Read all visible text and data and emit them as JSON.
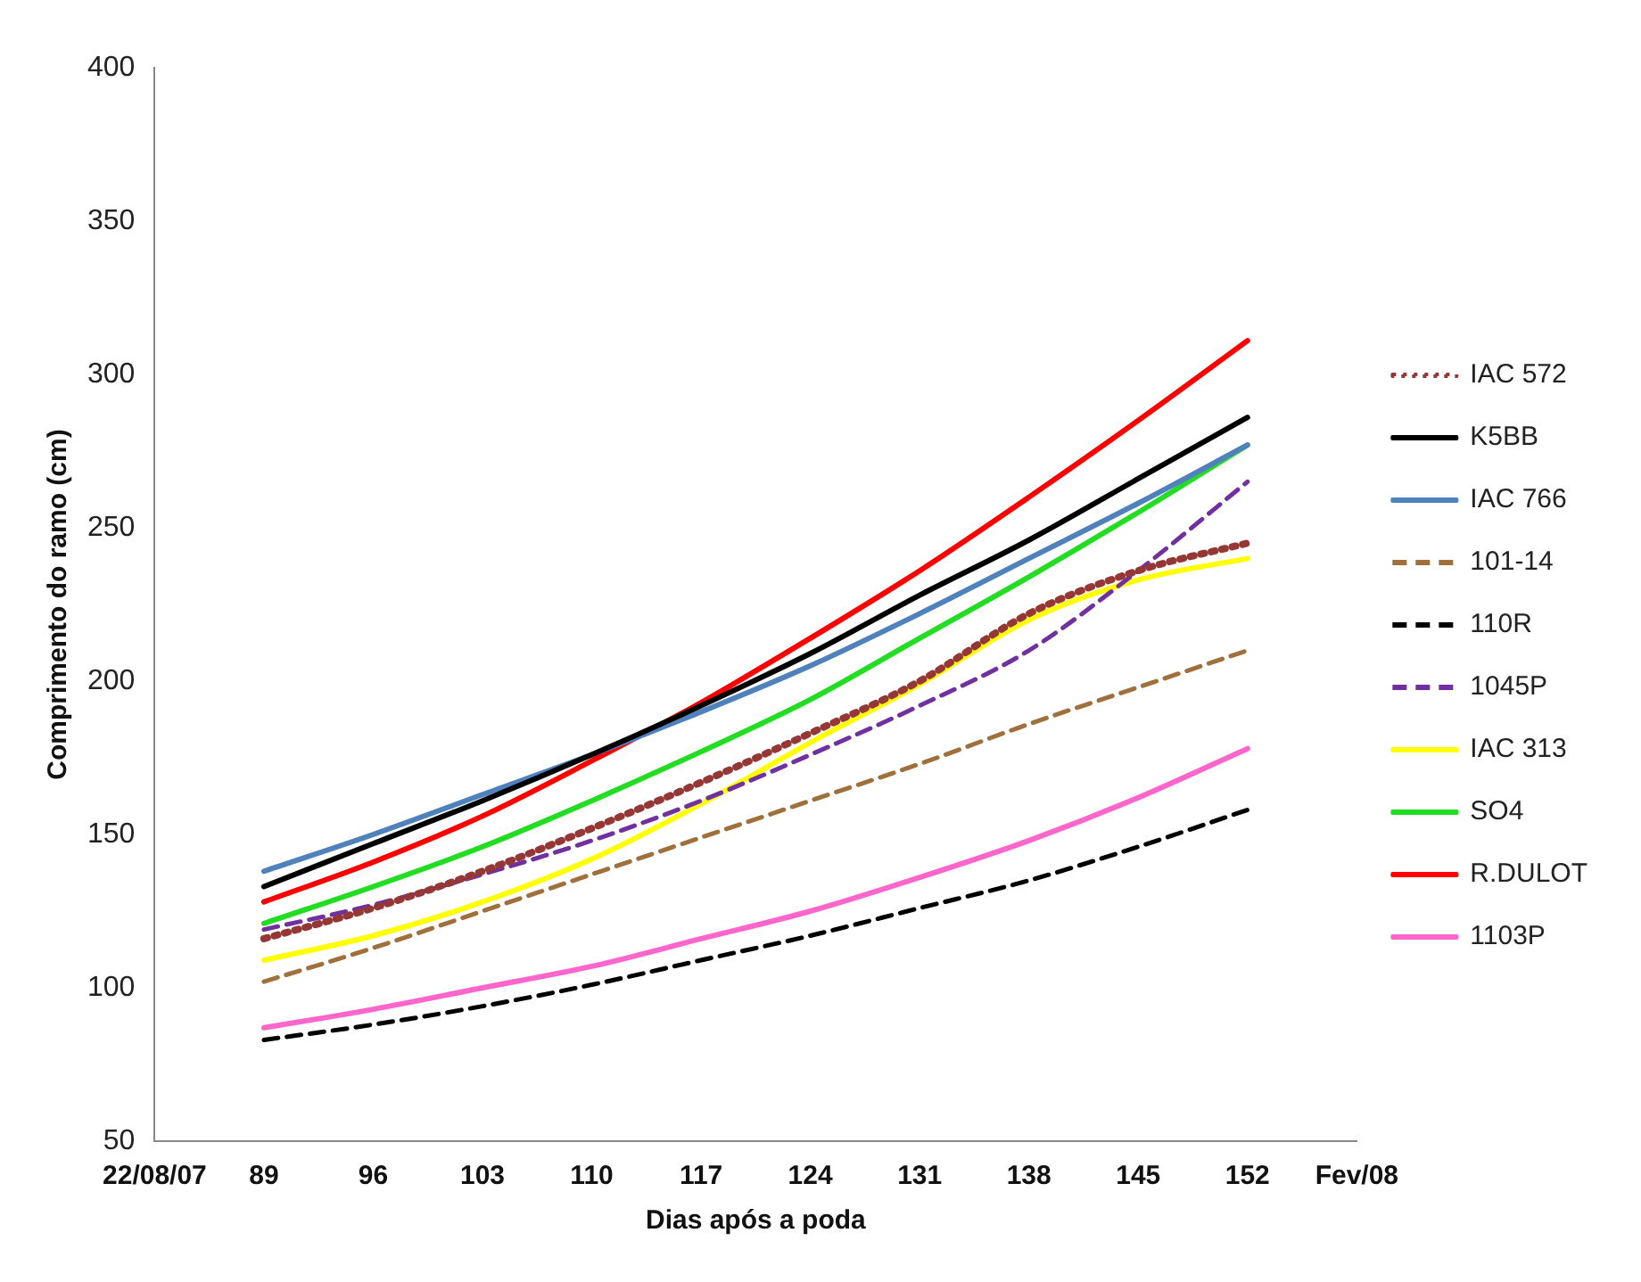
{
  "chart_data": {
    "type": "line",
    "xlabel": "Dias após a poda",
    "ylabel": "Comprimento do ramo (cm)",
    "categories": [
      "22/08/07",
      "89",
      "96",
      "103",
      "110",
      "117",
      "124",
      "131",
      "138",
      "145",
      "152",
      "Fev/08"
    ],
    "ylim": [
      50,
      400
    ],
    "yticks": [
      50,
      100,
      150,
      200,
      250,
      300,
      350,
      400
    ],
    "grid": false,
    "legend": "right",
    "marker": "none",
    "series": [
      {
        "name": "IAC 572",
        "color": "#953735",
        "line_style": "dotted",
        "values": [
          null,
          116,
          126,
          138,
          152,
          167,
          183,
          200,
          222,
          236,
          245,
          null
        ]
      },
      {
        "name": "K5BB",
        "color": "#000000",
        "line_style": "solid",
        "values": [
          null,
          133,
          147,
          161,
          176,
          192,
          209,
          228,
          246,
          266,
          286,
          null
        ]
      },
      {
        "name": "IAC 766",
        "color": "#4f81bd",
        "line_style": "solid",
        "values": [
          null,
          138,
          150,
          163,
          176,
          190,
          205,
          222,
          240,
          258,
          277,
          null
        ]
      },
      {
        "name": "101-14",
        "color": "#a0703c",
        "line_style": "dashed",
        "values": [
          null,
          102,
          113,
          125,
          137,
          149,
          161,
          173,
          186,
          198,
          210,
          null
        ]
      },
      {
        "name": "110R",
        "color": "#000000",
        "line_style": "dashed",
        "values": [
          null,
          83,
          88,
          94,
          101,
          109,
          117,
          126,
          135,
          146,
          158,
          null
        ]
      },
      {
        "name": "1045P",
        "color": "#7030a0",
        "line_style": "dashed",
        "values": [
          null,
          119,
          127,
          137,
          148,
          161,
          176,
          192,
          210,
          236,
          265,
          null
        ]
      },
      {
        "name": "IAC 313",
        "color": "#ffff00",
        "line_style": "solid",
        "values": [
          null,
          109,
          117,
          128,
          142,
          160,
          180,
          199,
          220,
          233,
          240,
          null
        ]
      },
      {
        "name": "SO4",
        "color": "#22dd22",
        "line_style": "solid",
        "values": [
          null,
          121,
          133,
          146,
          161,
          177,
          194,
          214,
          234,
          255,
          277,
          null
        ]
      },
      {
        "name": "R.DULOT",
        "color": "#ff0000",
        "line_style": "solid",
        "values": [
          null,
          128,
          141,
          156,
          174,
          193,
          214,
          236,
          260,
          285,
          311,
          null
        ]
      },
      {
        "name": "1103P",
        "color": "#ff66cc",
        "line_style": "solid",
        "values": [
          null,
          87,
          93,
          100,
          107,
          116,
          125,
          136,
          148,
          162,
          178,
          null
        ]
      }
    ]
  }
}
